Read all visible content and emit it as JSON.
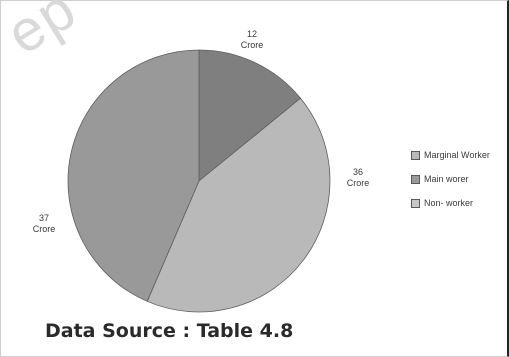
{
  "chart_data": {
    "type": "pie",
    "categories": [
      "Marginal Worker",
      "Main worer",
      "Non- worker"
    ],
    "values": [
      12,
      36,
      37
    ],
    "slice_labels": [
      {
        "value": "12",
        "unit": "Crore"
      },
      {
        "value": "36",
        "unit": "Crore"
      },
      {
        "value": "37",
        "unit": "Crore"
      }
    ],
    "colors": [
      "#7f7f7f",
      "#b9b9b9",
      "#999999"
    ],
    "legend": {
      "position": "right",
      "entries": [
        "Marginal Worker",
        "Main worer",
        "Non- worker"
      ]
    }
  },
  "source_note": "Data Source : Table 4.8"
}
